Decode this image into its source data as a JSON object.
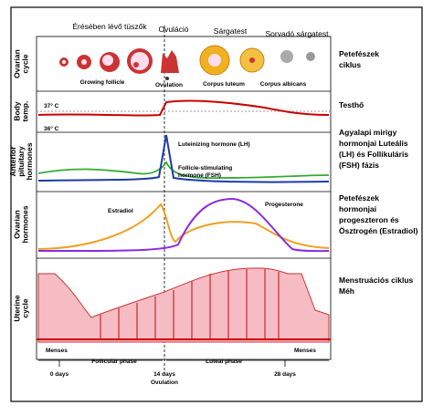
{
  "top_labels": [
    "Érésében lévő tüszők",
    "Ovuláció",
    "Sárgatest",
    "Sorvadó sárgatest"
  ],
  "row_labels": [
    [
      "Ovarian",
      "cycle"
    ],
    [
      "Body",
      "temp."
    ],
    [
      "Anterior",
      "pituitary",
      "hormones"
    ],
    [
      "Ovarian",
      "hormones"
    ],
    [
      "Uterine",
      "cycle"
    ]
  ],
  "follicle_labels": [
    "Growing follicle",
    "Ovulation",
    "Corpus luteum",
    "Corpus albicans"
  ],
  "temp_labels": [
    "37° C",
    "36° C"
  ],
  "hormone_labels": [
    "Luteinizing hormone (LH)",
    "Follicle-stimulating",
    "hormone (FSH)",
    "Estradiol",
    "Progesterone"
  ],
  "menses": [
    "Menses",
    "Menses"
  ],
  "phases": [
    "Follicular phase",
    "Luteal phase"
  ],
  "days": [
    "0 days",
    "14 days",
    "Ovulation",
    "28 days"
  ],
  "right_labels": [
    [
      "Petefészek",
      "ciklus"
    ],
    [
      "Testhő"
    ],
    [
      "Agyalapi mirigy",
      "hormonjai Luteális",
      "(LH) és Follikuláris",
      "(FSH) fázis"
    ],
    [
      "Petefészek",
      "hormonjai",
      "progeszteron és",
      "Ösztrogén (Estradiol)"
    ],
    [
      "Menstruációs ciklus",
      "Méh"
    ]
  ]
}
